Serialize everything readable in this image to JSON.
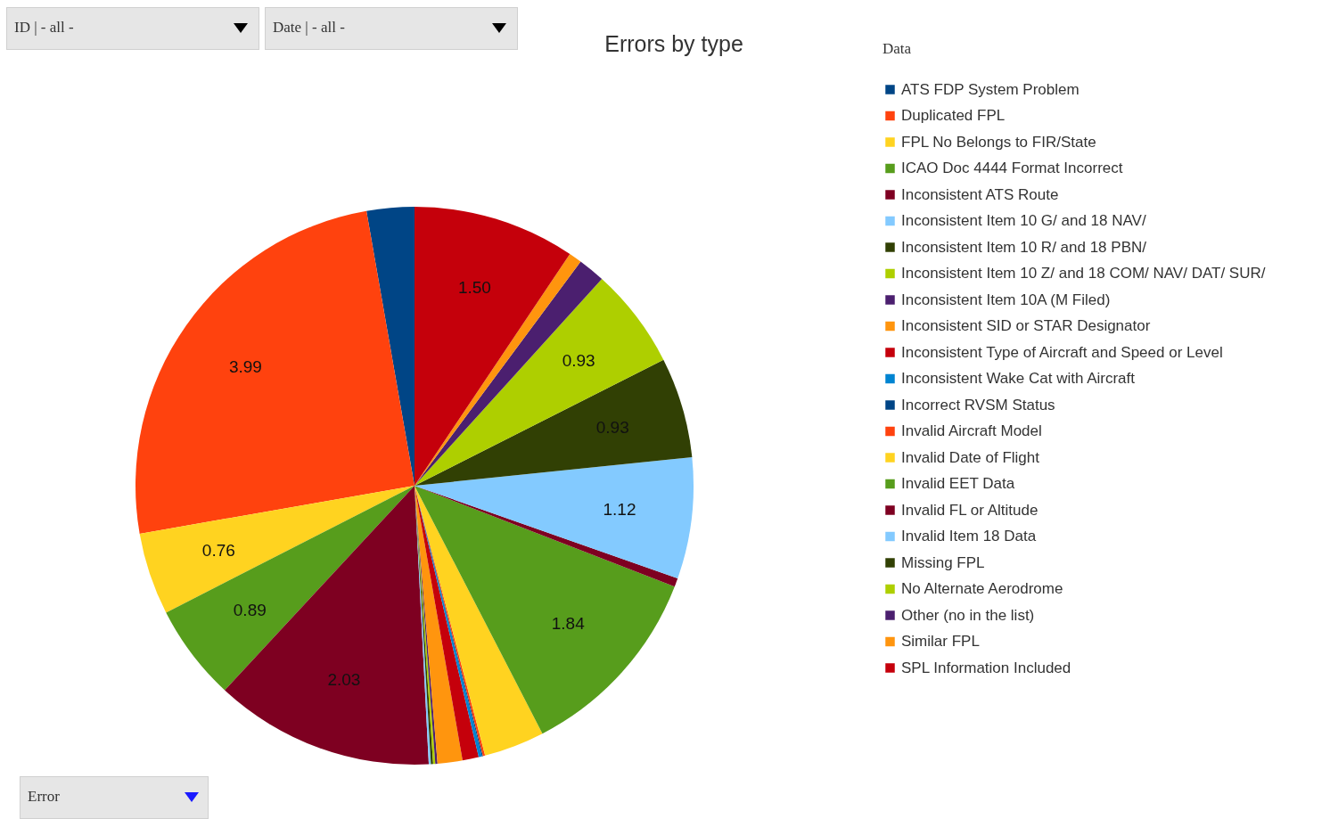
{
  "chart_data": {
    "type": "pie",
    "title": "Errors by type",
    "legend_title": "Data",
    "legend": "right",
    "annotations": [
      "ID | - all -",
      "Date | - all -",
      "Error"
    ],
    "categories": [
      "ATS FDP System Problem",
      "Duplicated FPL",
      "FPL No Belongs to FIR/State",
      "ICAO Doc 4444 Format Incorrect",
      "Inconsistent ATS Route",
      "Inconsistent Item 10 G/ and 18 NAV/",
      "Inconsistent Item 10 R/ and 18 PBN/",
      "Inconsistent Item 10 Z/ and 18 COM/ NAV/ DAT/ SUR/",
      "Inconsistent Item 10A  (M Filed)",
      "Inconsistent SID or STAR Designator",
      "Inconsistent Type of Aircraft and Speed or Level",
      "Inconsistent Wake Cat with Aircraft",
      "Incorrect RVSM Status",
      "Invalid Aircraft Model",
      "Invalid Date of Flight",
      "Invalid EET Data",
      "Invalid FL or Altitude",
      "Invalid Item 18 Data",
      "Missing FPL",
      "No Alternate Aerodrome",
      "Other (no in the list)",
      "Similar FPL",
      "SPL Information Included"
    ],
    "values": [
      0.44,
      3.99,
      0.76,
      0.89,
      2.03,
      0.02,
      0.02,
      0.02,
      0.02,
      0.23,
      0.15,
      0.03,
      0.01,
      0.02,
      0.56,
      1.84,
      0.08,
      1.12,
      0.93,
      0.93,
      0.25,
      0.12,
      1.5
    ],
    "value_labels": [
      null,
      "3.99",
      "0.76",
      "0.89",
      "2.03",
      null,
      null,
      null,
      null,
      null,
      null,
      null,
      null,
      null,
      null,
      "1.84",
      null,
      "1.12",
      "0.93",
      "0.93",
      null,
      null,
      "1.50"
    ],
    "colors": [
      "#004586",
      "#ff420e",
      "#ffd320",
      "#579d1c",
      "#7e0021",
      "#83caff",
      "#314004",
      "#aecf00",
      "#4b1f6f",
      "#ff950e",
      "#c5000b",
      "#0084d1",
      "#004586",
      "#ff420e",
      "#ffd320",
      "#579d1c",
      "#7e0021",
      "#83caff",
      "#314004",
      "#aecf00",
      "#4b1f6f",
      "#ff950e",
      "#c5000b"
    ]
  }
}
